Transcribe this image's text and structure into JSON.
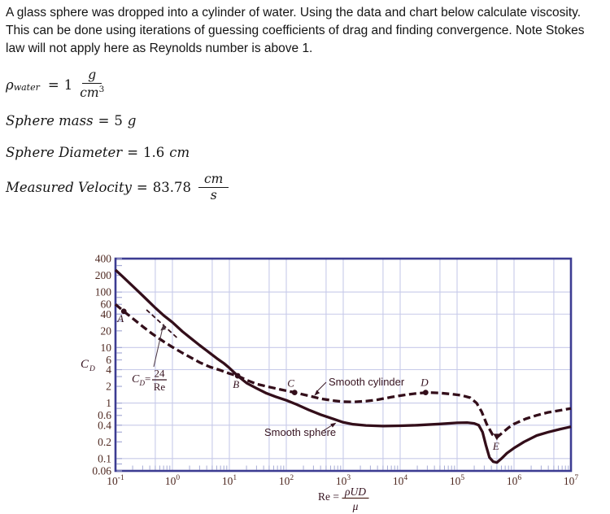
{
  "paragraph": {
    "line1": "A glass sphere was dropped into a cylinder of water. Using the data and chart below calculate viscosity.",
    "line2": "This can be done using iterations of guessing coefficients of drag and finding convergence. Note Stokes",
    "line3": "law will not apply here as Reynolds number is above 1."
  },
  "equations": {
    "density": {
      "symbol": "ρ",
      "symbol_sub": "water",
      "equals": "=",
      "value": "1",
      "frac_num": "g",
      "frac_den": "cm",
      "frac_den_sup": "3"
    },
    "mass": {
      "name": "Sphere mass",
      "equals": "=",
      "value": "5",
      "unit": "g"
    },
    "diameter": {
      "name": "Sphere Diameter",
      "equals": "=",
      "value": "1.6",
      "unit": "cm"
    },
    "velocity": {
      "name": "Measured Velocity",
      "equals": "=",
      "value": "83.78",
      "frac_num": "cm",
      "frac_den": "s"
    }
  },
  "chart_data": {
    "type": "line",
    "title": "",
    "scale": "log-log",
    "x_axis": {
      "label_prefix": "Re =",
      "label_frac_num": "ρUD",
      "label_frac_den": "μ",
      "range": [
        0.1,
        10000000
      ],
      "ticks": [
        {
          "base": "10",
          "exp": "-1"
        },
        {
          "base": "10",
          "exp": "0"
        },
        {
          "base": "10",
          "exp": "1"
        },
        {
          "base": "10",
          "exp": "2"
        },
        {
          "base": "10",
          "exp": "3"
        },
        {
          "base": "10",
          "exp": "4"
        },
        {
          "base": "10",
          "exp": "5"
        },
        {
          "base": "10",
          "exp": "6"
        },
        {
          "base": "10",
          "exp": "7"
        }
      ]
    },
    "y_axis": {
      "label_base": "C",
      "label_sub": "D",
      "range": [
        0.06,
        400
      ],
      "ticks": [
        "400",
        "200",
        "100",
        "60",
        "40",
        "20",
        "10",
        "6",
        "4",
        "2",
        "1",
        "0.6",
        "0.4",
        "0.2",
        "0.1",
        "0.06"
      ]
    },
    "grid": {
      "x_decades": true,
      "x_intermediate_factor": 5,
      "y_line_factors": [
        1,
        4
      ],
      "grid_on": true
    },
    "series": [
      {
        "name": "Smooth sphere",
        "style": "solid",
        "points": [
          [
            0.1,
            250
          ],
          [
            0.13,
            195
          ],
          [
            0.18,
            142
          ],
          [
            0.25,
            103
          ],
          [
            0.35,
            74
          ],
          [
            0.5,
            52
          ],
          [
            0.7,
            38
          ],
          [
            1,
            28.5
          ],
          [
            1.5,
            19.5
          ],
          [
            2,
            15.3
          ],
          [
            3,
            11
          ],
          [
            4,
            8.8
          ],
          [
            6,
            6.4
          ],
          [
            8,
            5.2
          ],
          [
            10,
            4.3
          ],
          [
            14,
            3.1
          ],
          [
            20,
            2.3
          ],
          [
            30,
            1.85
          ],
          [
            45,
            1.5
          ],
          [
            65,
            1.3
          ],
          [
            100,
            1.12
          ],
          [
            150,
            0.95
          ],
          [
            250,
            0.75
          ],
          [
            400,
            0.62
          ],
          [
            700,
            0.51
          ],
          [
            1000,
            0.45
          ],
          [
            1500,
            0.415
          ],
          [
            2500,
            0.395
          ],
          [
            5000,
            0.385
          ],
          [
            10000,
            0.39
          ],
          [
            20000,
            0.4
          ],
          [
            50000,
            0.42
          ],
          [
            100000,
            0.44
          ],
          [
            150000,
            0.445
          ],
          [
            200000,
            0.43
          ],
          [
            240000,
            0.4
          ],
          [
            280000,
            0.3
          ],
          [
            320000,
            0.175
          ],
          [
            370000,
            0.105
          ],
          [
            430000,
            0.088
          ],
          [
            500000,
            0.085
          ],
          [
            600000,
            0.1
          ],
          [
            750000,
            0.125
          ],
          [
            1000000,
            0.155
          ],
          [
            1500000,
            0.2
          ],
          [
            2500000,
            0.26
          ],
          [
            4000000,
            0.3
          ],
          [
            6500000,
            0.34
          ],
          [
            10000000,
            0.375
          ]
        ]
      },
      {
        "name": "Smooth cylinder",
        "style": "dashed",
        "points": [
          [
            0.1,
            60
          ],
          [
            0.14,
            45
          ],
          [
            0.2,
            33.5
          ],
          [
            0.3,
            24
          ],
          [
            0.45,
            17.5
          ],
          [
            0.7,
            12.8
          ],
          [
            1,
            10.2
          ],
          [
            1.5,
            8
          ],
          [
            2,
            6.8
          ],
          [
            3,
            5.4
          ],
          [
            4.5,
            4.5
          ],
          [
            7,
            3.9
          ],
          [
            10,
            3.4
          ],
          [
            14,
            3.1
          ],
          [
            20,
            2.6
          ],
          [
            30,
            2.2
          ],
          [
            50,
            1.95
          ],
          [
            80,
            1.75
          ],
          [
            140,
            1.55
          ],
          [
            250,
            1.35
          ],
          [
            400,
            1.2
          ],
          [
            700,
            1.1
          ],
          [
            1000,
            1.06
          ],
          [
            1500,
            1.05
          ],
          [
            2500,
            1.08
          ],
          [
            4000,
            1.15
          ],
          [
            7000,
            1.28
          ],
          [
            12000,
            1.4
          ],
          [
            20000,
            1.5
          ],
          [
            30000,
            1.55
          ],
          [
            50000,
            1.52
          ],
          [
            80000,
            1.45
          ],
          [
            120000,
            1.38
          ],
          [
            170000,
            1.25
          ],
          [
            220000,
            1.0
          ],
          [
            270000,
            0.7
          ],
          [
            330000,
            0.42
          ],
          [
            420000,
            0.27
          ],
          [
            500000,
            0.24
          ],
          [
            620000,
            0.29
          ],
          [
            800000,
            0.36
          ],
          [
            1000000,
            0.42
          ],
          [
            1600000,
            0.52
          ],
          [
            2500000,
            0.6
          ],
          [
            4000000,
            0.68
          ],
          [
            7000000,
            0.75
          ],
          [
            10000000,
            0.8
          ]
        ]
      },
      {
        "name": "Stokes law line (CD = 24/Re)",
        "style": "thin-dashed",
        "points": [
          [
            0.35,
            48
          ],
          [
            1.25,
            14.5
          ]
        ]
      }
    ],
    "marked_points": [
      {
        "label": "A",
        "re": 0.14,
        "cd": 45
      },
      {
        "label": "B",
        "re": 14,
        "cd": 3.1
      },
      {
        "label": "C",
        "re": 140,
        "cd": 1.55
      },
      {
        "label": "D",
        "re": 28000,
        "cd": 1.55
      },
      {
        "label": "E",
        "re": 500000,
        "cd": 0.24
      }
    ],
    "annotations": {
      "stokes_cd": "C",
      "stokes_cd_sub": "D",
      "stokes_eq": "=",
      "stokes_num": "24",
      "stokes_den": "Re",
      "cylinder": "Smooth cylinder",
      "sphere": "Smooth sphere"
    },
    "colors": {
      "curve": "#330e1a",
      "frame": "#3c3c92",
      "grid": "#c7cae9",
      "minor_tick": "#a6abd6",
      "tick_label": "#4e2820"
    }
  }
}
